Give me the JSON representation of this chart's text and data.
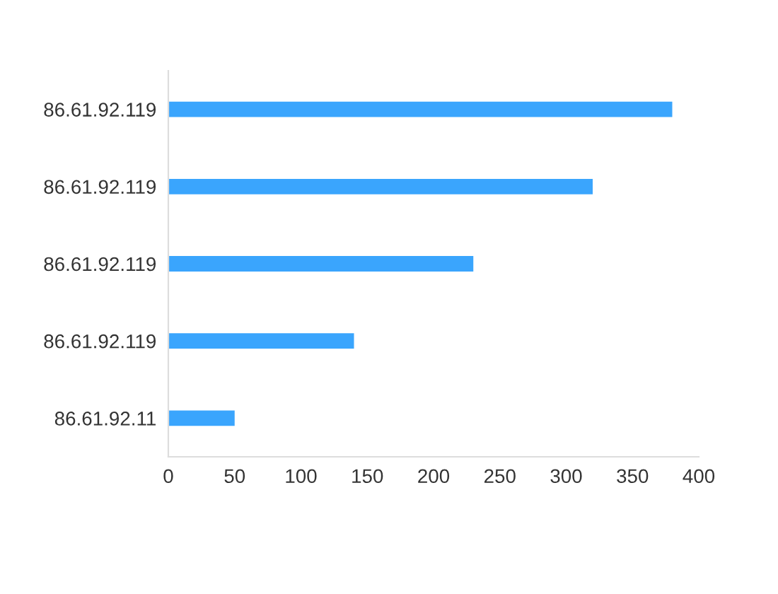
{
  "chart_data": {
    "type": "bar",
    "orientation": "horizontal",
    "categories": [
      "86.61.92.119",
      "86.61.92.119",
      "86.61.92.119",
      "86.61.92.119",
      "86.61.92.11"
    ],
    "values": [
      380,
      320,
      230,
      140,
      50
    ],
    "color": "#3aa5fd",
    "xlim": [
      0,
      400
    ],
    "xticks": [
      0,
      50,
      100,
      150,
      200,
      250,
      300,
      350,
      400
    ],
    "grid": false
  }
}
